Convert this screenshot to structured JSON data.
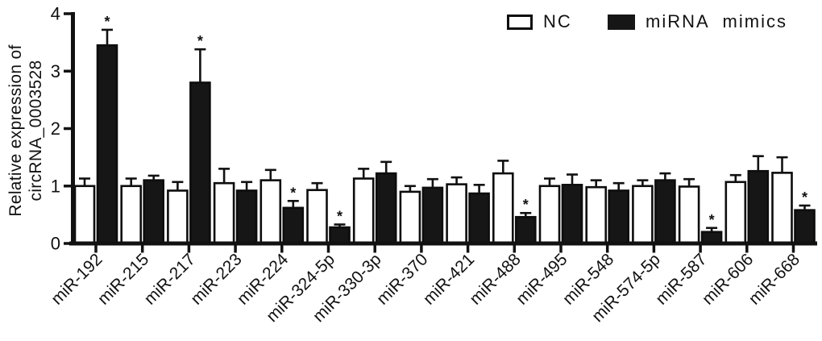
{
  "figure": {
    "background": "#ffffff",
    "ink_color": "#111111"
  },
  "chart_data": {
    "type": "bar",
    "title": "",
    "xlabel": "",
    "ylabel": "Relative expression of circRNA_0003528",
    "ylabel_line1": "Relative expression of",
    "ylabel_line2": "circRNA_0003528",
    "ylim": [
      0,
      4
    ],
    "yticks": [
      0,
      1,
      2,
      3,
      4
    ],
    "grid": false,
    "legend_position": "top-right",
    "error_bars": "upper only, T-caps",
    "significance_marker": "*",
    "categories": [
      "miR-192",
      "miR-215",
      "miR-217",
      "miR-223",
      "miR-224",
      "miR-324-5p",
      "miR-330-3p",
      "miR-370",
      "miR-421",
      "miR-488",
      "miR-495",
      "miR-548",
      "miR-574-5p",
      "miR-587",
      "miR-606",
      "miR-668"
    ],
    "series": [
      {
        "name": "NC",
        "fill": "#ffffff",
        "stroke": "#0d0d0d",
        "values": [
          1.0,
          1.0,
          0.92,
          1.05,
          1.1,
          0.93,
          1.13,
          0.9,
          1.03,
          1.22,
          1.0,
          0.98,
          1.0,
          0.99,
          1.07,
          1.23
        ],
        "errors": [
          0.13,
          0.13,
          0.15,
          0.25,
          0.18,
          0.12,
          0.17,
          0.1,
          0.12,
          0.22,
          0.13,
          0.12,
          0.1,
          0.13,
          0.12,
          0.27
        ],
        "significant": [
          false,
          false,
          false,
          false,
          false,
          false,
          false,
          false,
          false,
          false,
          false,
          false,
          false,
          false,
          false,
          false
        ]
      },
      {
        "name": "miRNA mimics",
        "fill": "#161616",
        "stroke": "#0d0d0d",
        "values": [
          3.45,
          1.1,
          2.8,
          0.92,
          0.62,
          0.28,
          1.22,
          0.97,
          0.87,
          0.46,
          1.02,
          0.92,
          1.1,
          0.2,
          1.26,
          0.58
        ],
        "errors": [
          0.27,
          0.08,
          0.58,
          0.15,
          0.12,
          0.05,
          0.2,
          0.15,
          0.15,
          0.07,
          0.18,
          0.13,
          0.12,
          0.07,
          0.26,
          0.08
        ],
        "significant": [
          true,
          false,
          true,
          false,
          true,
          true,
          false,
          false,
          false,
          true,
          false,
          false,
          false,
          true,
          false,
          true
        ]
      }
    ]
  }
}
